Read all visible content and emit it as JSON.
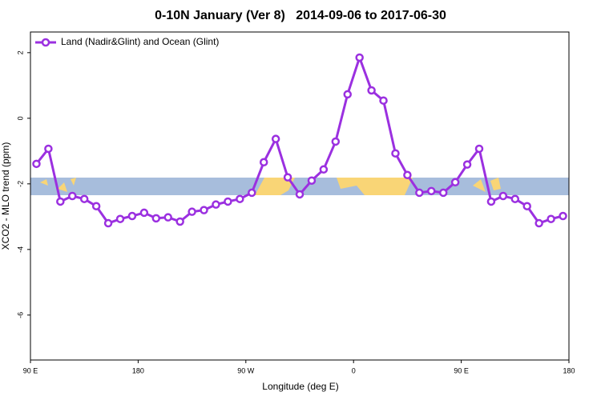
{
  "chart_data": {
    "type": "line",
    "title": "0-10N January (Ver 8)   2014-09-06 to 2017-06-30",
    "x_label": "Longitude (deg E)",
    "y_label": "XCO2 - MLO trend (ppm)",
    "x": [
      95,
      105,
      115,
      125,
      135,
      145,
      155,
      165,
      175,
      185,
      195,
      205,
      215,
      225,
      235,
      245,
      255,
      265,
      275,
      285,
      295,
      305,
      315,
      325,
      335,
      345,
      355,
      365,
      375,
      385,
      395,
      405,
      415,
      425,
      435,
      445,
      455,
      465,
      475,
      485,
      495,
      505,
      515,
      525,
      535
    ],
    "series": [
      {
        "name": "Land (Nadir&Glint) and Ocean (Glint)",
        "color": "#9b30e0",
        "values": [
          -1.39,
          -0.93,
          -2.54,
          -2.37,
          -2.46,
          -2.68,
          -3.2,
          -3.07,
          -2.98,
          -2.88,
          -3.05,
          -3.02,
          -3.15,
          -2.85,
          -2.8,
          -2.63,
          -2.54,
          -2.46,
          -2.27,
          -1.34,
          -0.63,
          -1.8,
          -2.32,
          -1.9,
          -1.56,
          -0.71,
          0.73,
          1.85,
          0.85,
          0.54,
          -1.07,
          -1.73,
          -2.27,
          -2.22,
          -2.27,
          -1.95,
          -1.41,
          -0.93,
          -2.54,
          -2.37,
          -2.46,
          -2.68,
          -3.2,
          -3.07,
          -2.98
        ]
      }
    ],
    "xlim": [
      90,
      540
    ],
    "xticks": [
      {
        "value": 90,
        "label": "90 E"
      },
      {
        "value": 180,
        "label": "180"
      },
      {
        "value": 270,
        "label": "90 W"
      },
      {
        "value": 360,
        "label": "0"
      },
      {
        "value": 450,
        "label": "90 E"
      },
      {
        "value": 540,
        "label": "180"
      }
    ],
    "ylim": [
      -7.37,
      2.63
    ],
    "yticks": [
      2,
      0,
      -2,
      -4,
      -6
    ],
    "legend": "top-left"
  }
}
